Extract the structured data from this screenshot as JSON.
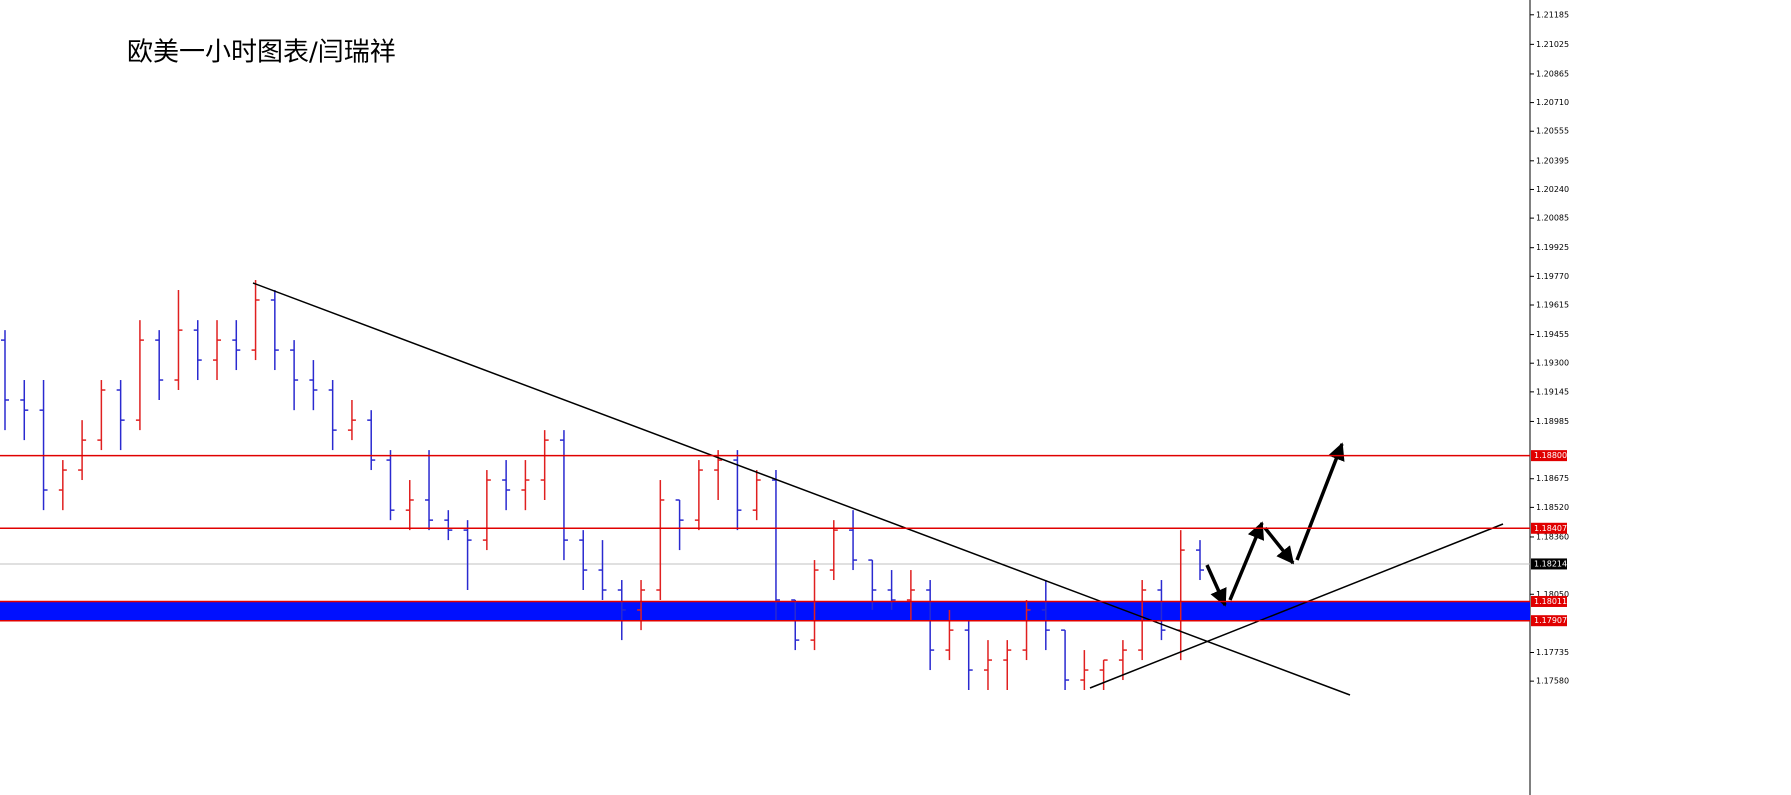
{
  "chart_data": {
    "type": "ohlc",
    "title": "欧美一小时图表/闫瑞祥",
    "open": [
      1.19425,
      1.19101,
      1.19046,
      1.18614,
      1.18722,
      1.18884,
      1.19155,
      1.18992,
      1.19425,
      1.19209,
      1.19479,
      1.19317,
      1.19425,
      1.19371,
      1.19642,
      1.19371,
      1.19209,
      1.19155,
      1.18938,
      1.18992,
      1.18776,
      1.18505,
      1.1856,
      1.18451,
      1.18397,
      1.18343,
      1.18668,
      1.18614,
      1.18668,
      1.18884,
      1.18343,
      1.18181,
      1.18073,
      1.17965,
      1.18073,
      1.1856,
      1.18451,
      1.18722,
      1.18776,
      1.18505,
      1.18668,
      1.18019,
      1.17802,
      1.18181,
      1.18397,
      1.18235,
      1.18073,
      1.18019,
      1.18073,
      1.17748,
      1.17856,
      1.1764,
      1.17694,
      1.17748,
      1.17965,
      1.17856,
      1.17586,
      1.1764,
      1.17694,
      1.17748,
      1.18073,
      1.17856,
      1.18289
    ],
    "high": [
      1.19479,
      1.19209,
      1.19209,
      1.18776,
      1.18992,
      1.19209,
      1.19209,
      1.19533,
      1.19479,
      1.19696,
      1.19533,
      1.19533,
      1.19533,
      1.1975,
      1.19696,
      1.19425,
      1.19317,
      1.19209,
      1.19101,
      1.19046,
      1.1883,
      1.18668,
      1.1883,
      1.18505,
      1.18451,
      1.18722,
      1.18776,
      1.18776,
      1.18938,
      1.18938,
      1.18397,
      1.18343,
      1.18127,
      1.18127,
      1.18668,
      1.1856,
      1.18776,
      1.1883,
      1.1883,
      1.18722,
      1.18722,
      1.18019,
      1.18235,
      1.18451,
      1.18505,
      1.18235,
      1.18181,
      1.18181,
      1.18127,
      1.17965,
      1.17911,
      1.17802,
      1.17802,
      1.18019,
      1.18127,
      1.17856,
      1.17748,
      1.17694,
      1.17802,
      1.18127,
      1.18127,
      1.18397,
      1.18343
    ],
    "low": [
      1.18938,
      1.18884,
      1.18505,
      1.18505,
      1.18668,
      1.1883,
      1.1883,
      1.18938,
      1.19101,
      1.19155,
      1.19209,
      1.19209,
      1.19263,
      1.19317,
      1.19263,
      1.19046,
      1.19046,
      1.1883,
      1.18884,
      1.18722,
      1.18451,
      1.18397,
      1.18397,
      1.18343,
      1.18073,
      1.18289,
      1.18505,
      1.18505,
      1.1856,
      1.18235,
      1.18073,
      1.18019,
      1.17802,
      1.17856,
      1.18019,
      1.18289,
      1.18397,
      1.1856,
      1.18397,
      1.18451,
      1.17911,
      1.17748,
      1.17748,
      1.18127,
      1.18181,
      1.17965,
      1.17965,
      1.17911,
      1.1764,
      1.17694,
      1.17532,
      1.17532,
      1.17532,
      1.17694,
      1.17748,
      1.17532,
      1.17532,
      1.17532,
      1.17586,
      1.17694,
      1.17802,
      1.17694,
      1.18127
    ],
    "close": [
      1.19101,
      1.19046,
      1.18614,
      1.18722,
      1.18884,
      1.19155,
      1.18992,
      1.19425,
      1.19209,
      1.19479,
      1.19317,
      1.19425,
      1.19371,
      1.19642,
      1.19371,
      1.19209,
      1.19155,
      1.18938,
      1.18992,
      1.18776,
      1.18505,
      1.1856,
      1.18451,
      1.18397,
      1.18343,
      1.18668,
      1.18614,
      1.18668,
      1.18884,
      1.18343,
      1.18181,
      1.18073,
      1.17965,
      1.18073,
      1.1856,
      1.18451,
      1.18722,
      1.18776,
      1.18505,
      1.18668,
      1.18019,
      1.17802,
      1.18181,
      1.18397,
      1.18235,
      1.18073,
      1.18019,
      1.18073,
      1.17748,
      1.17856,
      1.1764,
      1.17694,
      1.17748,
      1.17965,
      1.17856,
      1.17586,
      1.1764,
      1.17694,
      1.17748,
      1.18073,
      1.17856,
      1.18289,
      1.18181
    ],
    "up_color": "#e02020",
    "down_color": "#2a2ad0",
    "ylim": [
      1.16964,
      1.21265
    ],
    "yticks": [
      1.21185,
      1.21025,
      1.20865,
      {
        "value": 1.2071,
        "label": "1.20710"
      },
      1.20555,
      1.20395,
      {
        "value": 1.2024,
        "label": "1.20240"
      },
      1.20085,
      1.19925,
      {
        "value": 1.1977,
        "label": "1.19770"
      },
      1.19615,
      1.19455,
      {
        "value": 1.193,
        "label": "1.19300"
      },
      1.19145,
      1.18985,
      1.18675,
      {
        "value": 1.1852,
        "label": "1.18520"
      },
      {
        "value": 1.1836,
        "label": "1.18360"
      },
      {
        "value": 1.1805,
        "label": "1.18050"
      },
      1.17735,
      {
        "value": 1.1758,
        "label": "1.17580"
      }
    ],
    "levels": [
      {
        "value": 1.188,
        "label": "1.18800"
      },
      1.18407,
      1.18011,
      1.17907
    ],
    "level_color": "#e00000",
    "zone": {
      "from": 1.17907,
      "to": 1.18011,
      "color": "#0010ff"
    },
    "last": 1.18214,
    "last_color": "#000000"
  }
}
